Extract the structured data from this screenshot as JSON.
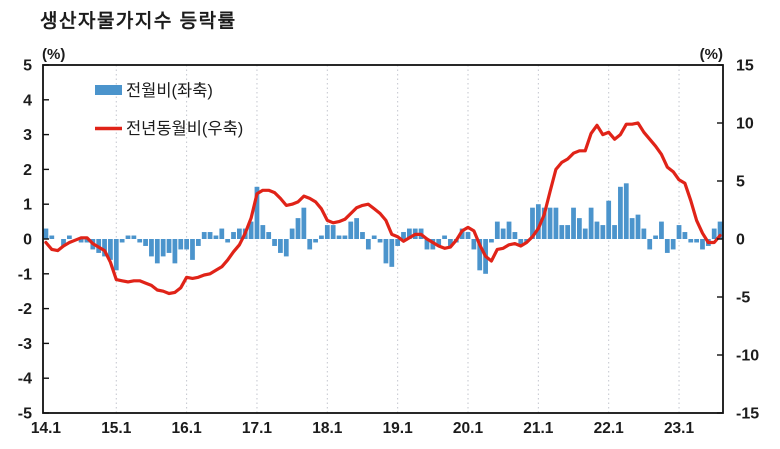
{
  "title": "생산자물가지수 등락률",
  "axes": {
    "left_unit_label": "(%)",
    "right_unit_label": "(%)"
  },
  "legend": [
    {
      "label": "전월비(좌축)",
      "marker": "bar"
    },
    {
      "label": "전년동월비(우축)",
      "marker": "line"
    }
  ],
  "colors": {
    "bar": "#4b94cc",
    "line": "#e02318",
    "axis": "#111111",
    "grid": "#c3c6ce",
    "text": "#1c1c1c"
  },
  "chart_data": {
    "type": "bar+line",
    "title": "생산자물가지수 등락률",
    "x_start": "2014.01",
    "frequency": "monthly",
    "n_months": 116,
    "x_tick_labels": [
      "14.1",
      "15.1",
      "16.1",
      "17.1",
      "18.1",
      "19.1",
      "20.1",
      "21.1",
      "22.1",
      "23.1"
    ],
    "left_axis": {
      "label": "(%)",
      "min": -5,
      "max": 5,
      "step": 1,
      "tick_labels": [
        "5",
        "4",
        "3",
        "2",
        "1",
        "0",
        "-1",
        "-2",
        "-3",
        "-4",
        "-5"
      ]
    },
    "right_axis": {
      "label": "(%)",
      "min": -15,
      "max": 15,
      "step": 5,
      "tick_labels": [
        "15",
        "10",
        "5",
        "0",
        "-5",
        "-10",
        "-15"
      ]
    },
    "grid": "vertical-dotted-yearly",
    "legend_position": "top-left-inside",
    "series": [
      {
        "name": "전월비(좌축)",
        "type": "bar",
        "axis": "left",
        "values": [
          0.3,
          0.1,
          0.0,
          -0.2,
          0.1,
          0.0,
          -0.1,
          -0.1,
          -0.3,
          -0.4,
          -0.5,
          -0.6,
          -0.9,
          -0.1,
          0.1,
          0.1,
          -0.1,
          -0.2,
          -0.5,
          -0.7,
          -0.5,
          -0.4,
          -0.7,
          -0.3,
          -0.3,
          -0.6,
          -0.2,
          0.2,
          0.2,
          0.1,
          0.3,
          -0.1,
          0.2,
          0.3,
          0.3,
          0.5,
          1.5,
          0.4,
          0.2,
          -0.2,
          -0.4,
          -0.5,
          0.3,
          0.6,
          0.9,
          -0.3,
          -0.1,
          0.1,
          0.4,
          0.4,
          0.1,
          0.1,
          0.5,
          0.6,
          0.2,
          -0.3,
          0.1,
          -0.1,
          -0.7,
          -0.8,
          -0.2,
          0.2,
          0.3,
          0.3,
          0.3,
          -0.3,
          -0.3,
          -0.2,
          0.1,
          -0.2,
          -0.1,
          0.3,
          0.2,
          -0.3,
          -0.9,
          -1.0,
          -0.1,
          0.5,
          0.3,
          0.5,
          0.2,
          -0.2,
          -0.1,
          0.9,
          1.0,
          0.9,
          0.9,
          0.9,
          0.4,
          0.4,
          0.9,
          0.6,
          0.3,
          0.9,
          0.5,
          0.4,
          1.1,
          0.4,
          1.5,
          1.6,
          0.6,
          0.7,
          0.3,
          -0.3,
          0.1,
          0.5,
          -0.4,
          -0.3,
          0.4,
          0.2,
          -0.1,
          -0.1,
          -0.3,
          -0.2,
          0.3,
          0.5
        ]
      },
      {
        "name": "전년동월비(우축)",
        "type": "line",
        "axis": "right",
        "values": [
          -0.3,
          -0.9,
          -1.0,
          -0.6,
          -0.3,
          -0.1,
          0.1,
          0.1,
          -0.4,
          -0.7,
          -1.0,
          -2.0,
          -3.5,
          -3.6,
          -3.7,
          -3.6,
          -3.6,
          -3.8,
          -4.0,
          -4.4,
          -4.5,
          -4.7,
          -4.6,
          -4.2,
          -3.3,
          -3.4,
          -3.3,
          -3.1,
          -3.0,
          -2.7,
          -2.4,
          -1.8,
          -1.1,
          -0.5,
          0.5,
          1.8,
          3.9,
          4.2,
          4.2,
          4.0,
          3.5,
          2.9,
          3.0,
          3.2,
          3.7,
          3.5,
          3.2,
          2.6,
          1.6,
          1.4,
          1.5,
          1.7,
          2.2,
          2.7,
          2.9,
          3.0,
          2.6,
          2.2,
          1.6,
          0.4,
          0.2,
          -0.2,
          0.1,
          0.4,
          0.4,
          0.0,
          -0.3,
          -0.6,
          -0.8,
          -0.7,
          -0.1,
          0.7,
          1.0,
          0.7,
          -0.5,
          -1.5,
          -1.9,
          -0.9,
          -0.8,
          -0.5,
          -0.4,
          -0.6,
          -0.3,
          0.2,
          0.9,
          2.1,
          4.1,
          6.0,
          6.6,
          6.9,
          7.4,
          7.6,
          7.6,
          9.1,
          9.8,
          9.0,
          9.2,
          8.6,
          9.0,
          9.9,
          9.9,
          10.0,
          9.2,
          8.6,
          8.0,
          7.3,
          6.2,
          5.8,
          5.1,
          4.8,
          3.3,
          1.6,
          0.5,
          -0.3,
          -0.3,
          0.3
        ]
      }
    ]
  }
}
